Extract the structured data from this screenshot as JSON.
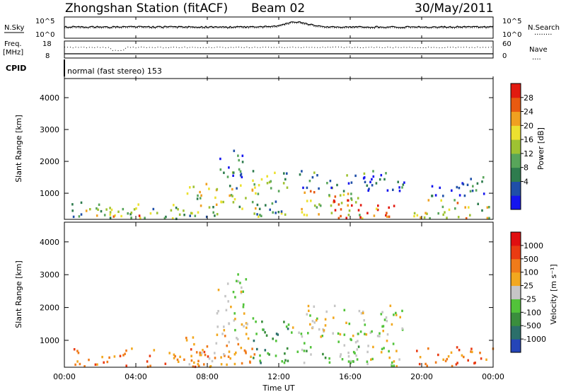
{
  "header": {
    "station": "Zhongshan Station (fitACF)",
    "beam": "Beam 02",
    "date": "30/May/2011"
  },
  "sky_panel": {
    "left_label": "N.Sky",
    "left_ticks": [
      "10^5",
      "10^0"
    ],
    "right_label": "N.Search",
    "right_ticks": [
      "10^5",
      "10^0"
    ],
    "right_legend": "........"
  },
  "freq_panel": {
    "left_label_1": "Freq.",
    "left_label_2": "[MHz]",
    "left_ticks": [
      "18",
      "8"
    ],
    "right_label": "Nave",
    "right_ticks": [
      "60",
      "0"
    ],
    "right_legend": "...."
  },
  "cpid": {
    "label": "CPID",
    "mode": "normal (fast stereo) 153"
  },
  "chart_data": [
    {
      "type": "heatmap",
      "name": "power",
      "ylabel": "Slant Range [km]",
      "yticks": [
        "4000",
        "3000",
        "2000",
        "1000"
      ],
      "yticks_values": [
        4000,
        3000,
        2000,
        1000
      ],
      "ylim": [
        180,
        4600
      ],
      "xlim_hours": [
        0,
        24
      ],
      "colorbar_label": "Power [dB]",
      "colorbar_ticks": [
        "28",
        "24",
        "20",
        "16",
        "12",
        "8",
        "4"
      ],
      "colorbar_ticks_values": [
        28,
        24,
        20,
        16,
        12,
        8,
        4
      ],
      "colorbar_range": [
        0,
        30
      ],
      "colorbar_colors": [
        "#1515ee",
        "#1f4fa8",
        "#2e7c4e",
        "#58a55a",
        "#9ec232",
        "#ece130",
        "#f0a020",
        "#e85a10",
        "#e21a10"
      ],
      "scatter_clusters": [
        {
          "t0": 0.4,
          "t1": 6.8,
          "r0": 180,
          "r1": 700,
          "level": 12
        },
        {
          "t0": 1.0,
          "t1": 4.5,
          "r0": 260,
          "r1": 520,
          "level": 20
        },
        {
          "t0": 6.5,
          "t1": 11.0,
          "r0": 250,
          "r1": 1300,
          "level": 14
        },
        {
          "t0": 8.5,
          "t1": 10.0,
          "r0": 1500,
          "r1": 2600,
          "level": 8
        },
        {
          "t0": 10.5,
          "t1": 12.5,
          "r0": 300,
          "r1": 1700,
          "level": 13
        },
        {
          "t0": 12.8,
          "t1": 16.5,
          "r0": 300,
          "r1": 1200,
          "level": 18
        },
        {
          "t0": 13.0,
          "t1": 19.0,
          "r0": 1050,
          "r1": 1700,
          "level": 7
        },
        {
          "t0": 15.0,
          "t1": 18.5,
          "r0": 200,
          "r1": 800,
          "level": 26
        },
        {
          "t0": 19.5,
          "t1": 24.0,
          "r0": 200,
          "r1": 800,
          "level": 17
        },
        {
          "t0": 20.5,
          "t1": 23.5,
          "r0": 900,
          "r1": 1600,
          "level": 6
        }
      ]
    },
    {
      "type": "heatmap",
      "name": "velocity",
      "ylabel": "Slant Range [km]",
      "yticks": [
        "4000",
        "3000",
        "2000",
        "1000"
      ],
      "yticks_values": [
        4000,
        3000,
        2000,
        1000
      ],
      "ylim": [
        180,
        4600
      ],
      "xlim_hours": [
        0,
        24
      ],
      "colorbar_label": "Velocity [m s⁻¹]",
      "colorbar_ticks": [
        "1000",
        "500",
        "100",
        "25",
        "-25",
        "-100",
        "-500",
        "-1000"
      ],
      "colorbar_colors": [
        "#2545b8",
        "#2b6f6a",
        "#3a8e3d",
        "#52c33a",
        "#c6c6c6",
        "#f2a81f",
        "#f07b1a",
        "#ea3b12",
        "#e00f10"
      ],
      "scatter_clusters": [
        {
          "t0": 0.4,
          "t1": 8.5,
          "r0": 180,
          "r1": 750,
          "cls": 6
        },
        {
          "t0": 6.5,
          "t1": 11.0,
          "r0": 250,
          "r1": 1200,
          "cls": 5
        },
        {
          "t0": 8.5,
          "t1": 10.2,
          "r0": 1300,
          "r1": 3200,
          "cls": 4
        },
        {
          "t0": 10.5,
          "t1": 12.5,
          "r0": 300,
          "r1": 1700,
          "cls": 2
        },
        {
          "t0": 12.5,
          "t1": 19.0,
          "r0": 1100,
          "r1": 2100,
          "cls": 4
        },
        {
          "t0": 13.0,
          "t1": 16.5,
          "r0": 300,
          "r1": 1100,
          "cls": 3
        },
        {
          "t0": 16.0,
          "t1": 18.8,
          "r0": 200,
          "r1": 1000,
          "cls": 4
        },
        {
          "t0": 19.5,
          "t1": 24.0,
          "r0": 200,
          "r1": 800,
          "cls": 6
        }
      ]
    }
  ],
  "xaxis": {
    "ticks": [
      "00:00",
      "04:00",
      "08:00",
      "12:00",
      "16:00",
      "20:00",
      "00:00"
    ],
    "ticks_hours": [
      0,
      4,
      8,
      12,
      16,
      20,
      24
    ],
    "label": "Time UT"
  }
}
